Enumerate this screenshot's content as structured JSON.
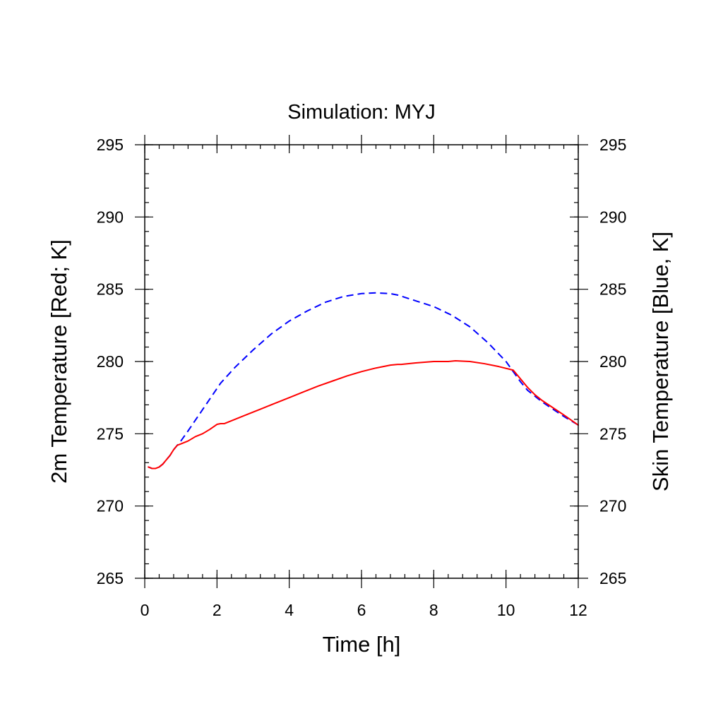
{
  "chart_data": {
    "type": "line",
    "title": "Simulation: MYJ",
    "xlabel": "Time [h]",
    "ylabel_left": "2m Temperature [Red; K]",
    "ylabel_right": "Skin Temperature [Blue, K]",
    "xlim": [
      0,
      12
    ],
    "ylim": [
      265,
      295
    ],
    "x_ticks": [
      0,
      2,
      4,
      6,
      8,
      10,
      12
    ],
    "y_ticks": [
      265,
      270,
      275,
      280,
      285,
      290,
      295
    ],
    "grid": false,
    "colors": {
      "t2m": "#ff0000",
      "tsk": "#0000ff",
      "axis": "#000000"
    },
    "series": [
      {
        "key": "t2m",
        "color": "#ff0000",
        "dash": "solid",
        "axis": "left",
        "x": [
          0.1,
          0.2,
          0.3,
          0.4,
          0.5,
          0.6,
          0.7,
          0.8,
          0.9,
          1.0,
          1.2,
          1.4,
          1.6,
          1.8,
          2.0,
          2.1,
          2.2,
          2.4,
          2.8,
          3.2,
          3.6,
          4.0,
          4.4,
          4.8,
          5.2,
          5.6,
          6.0,
          6.4,
          6.8,
          7.0,
          7.1,
          7.5,
          8.0,
          8.4,
          8.6,
          9.0,
          9.4,
          9.8,
          10.2,
          10.4,
          10.6,
          10.8,
          11.0,
          11.3,
          11.6,
          12.0
        ],
        "y": [
          272.7,
          272.6,
          272.6,
          272.7,
          272.9,
          273.2,
          273.5,
          273.9,
          274.2,
          274.3,
          274.5,
          274.8,
          275.0,
          275.3,
          275.65,
          275.7,
          275.7,
          275.9,
          276.3,
          276.7,
          277.1,
          277.5,
          277.9,
          278.3,
          278.65,
          279.0,
          279.3,
          279.55,
          279.75,
          279.8,
          279.8,
          279.9,
          280.0,
          280.0,
          280.05,
          280.0,
          279.85,
          279.65,
          279.4,
          278.8,
          278.2,
          277.7,
          277.3,
          276.8,
          276.3,
          275.6
        ]
      },
      {
        "key": "tsk",
        "color": "#0000ff",
        "dash": "dashed",
        "axis": "right",
        "x": [
          0.1,
          0.2,
          0.3,
          0.4,
          0.5,
          0.6,
          0.7,
          0.8,
          1.0,
          1.2,
          1.5,
          1.8,
          2.1,
          2.5,
          3.0,
          3.5,
          4.0,
          4.5,
          5.0,
          5.5,
          6.0,
          6.4,
          6.8,
          7.0,
          7.5,
          8.0,
          8.5,
          9.0,
          9.5,
          10.0,
          10.2,
          10.4,
          10.6,
          10.8,
          11.0,
          11.3,
          11.6,
          12.0
        ],
        "y": [
          272.7,
          272.6,
          272.6,
          272.7,
          272.9,
          273.2,
          273.5,
          273.9,
          274.5,
          275.2,
          276.3,
          277.4,
          278.5,
          279.6,
          280.8,
          281.9,
          282.8,
          283.5,
          284.1,
          284.5,
          284.7,
          284.75,
          284.7,
          284.6,
          284.2,
          283.8,
          283.2,
          282.4,
          281.3,
          280.0,
          279.3,
          278.6,
          278.0,
          277.6,
          277.2,
          276.7,
          276.2,
          275.6
        ]
      }
    ]
  }
}
